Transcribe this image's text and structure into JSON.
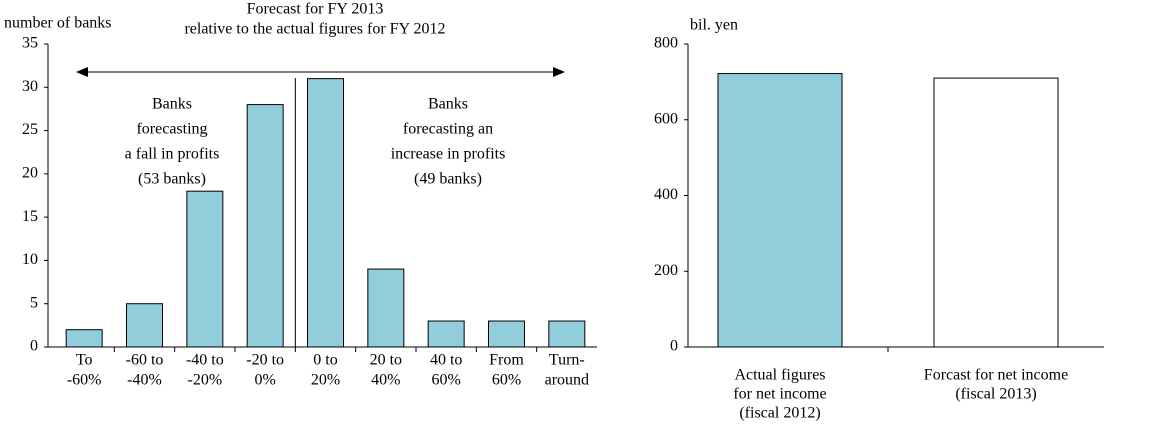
{
  "chart_data": [
    {
      "type": "bar",
      "y_label": "number of banks",
      "categories": [
        [
          "To",
          "-60%"
        ],
        [
          "-60 to",
          "-40%"
        ],
        [
          "-40 to",
          "-20%"
        ],
        [
          "-20 to",
          "0%"
        ],
        [
          "0 to",
          "20%"
        ],
        [
          "20 to",
          "40%"
        ],
        [
          "40 to",
          "60%"
        ],
        [
          "From",
          "60%"
        ],
        [
          "Turn-",
          "around"
        ]
      ],
      "values": [
        2,
        5,
        18,
        28,
        31,
        9,
        3,
        3,
        3
      ],
      "colors": [
        "#92cddc",
        "#92cddc",
        "#92cddc",
        "#92cddc",
        "#92cddc",
        "#92cddc",
        "#92cddc",
        "#92cddc",
        "#92cddc"
      ],
      "ylim": [
        0,
        35
      ],
      "yticks": [
        0,
        5,
        10,
        15,
        20,
        25,
        30,
        35
      ],
      "annotations": [
        [
          "Forecast for FY 2013",
          "relative to the actual figures for FY 2012"
        ],
        [
          "Banks",
          "forecasting",
          "a fall in profits",
          "(53 banks)"
        ],
        [
          "Banks",
          "forecasting an",
          "increase in profits",
          "(49 banks)"
        ]
      ]
    },
    {
      "type": "bar",
      "y_label": "bil. yen",
      "categories": [
        [
          "Actual figures",
          "for net income",
          "(fiscal 2012)"
        ],
        [
          "Forcast for net income",
          "(fiscal 2013)"
        ]
      ],
      "values": [
        722,
        710
      ],
      "colors": [
        "#92cddc",
        "#ffffff"
      ],
      "ylim": [
        0,
        800
      ],
      "yticks": [
        0,
        200,
        400,
        600,
        800
      ]
    }
  ]
}
